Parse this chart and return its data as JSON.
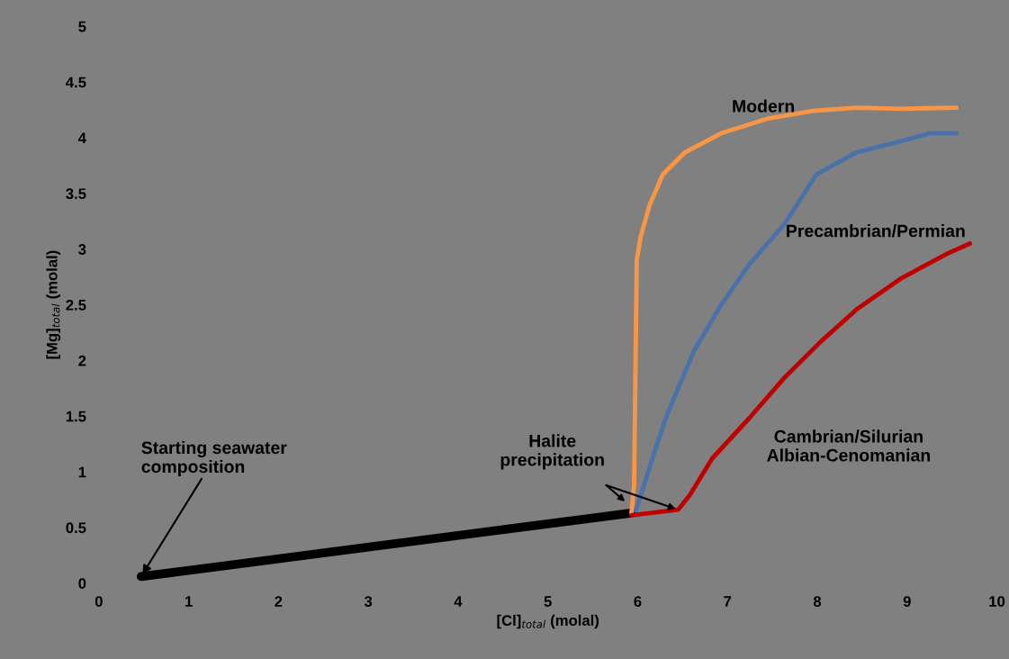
{
  "chart_data": {
    "type": "line",
    "xlabel": "[Cl]$_{total}$ (molal)",
    "ylabel": "[Mg]$_{total}$ (molal)",
    "xlim": [
      0,
      10
    ],
    "xticks": [
      0,
      1,
      2,
      3,
      4,
      5,
      6,
      7,
      8,
      9,
      10
    ],
    "ylim": [
      0,
      5
    ],
    "yticks": [
      0,
      0.5,
      1,
      1.5,
      2,
      2.5,
      3,
      3.5,
      4,
      4.5,
      5
    ],
    "grid": false,
    "legend": false,
    "marker": "none",
    "line_style": "solid",
    "series": [
      {
        "color": "#000000",
        "x": [
          0.47,
          5.93
        ],
        "values": [
          0.06,
          0.63
        ]
      },
      {
        "name": "Modern",
        "color": "#f79646",
        "x": [
          5.93,
          5.96,
          5.99,
          6.03,
          6.13,
          6.28,
          6.53,
          6.93,
          7.44,
          7.94,
          8.44,
          8.94,
          9.55
        ],
        "values": [
          0.63,
          0.88,
          2.9,
          3.1,
          3.39,
          3.67,
          3.87,
          4.04,
          4.17,
          4.24,
          4.27,
          4.26,
          4.27
        ]
      },
      {
        "name": "Precambrian/Permian",
        "color": "#4a72a8",
        "x": [
          5.98,
          6.18,
          6.33,
          6.63,
          6.93,
          7.24,
          7.64,
          7.99,
          8.44,
          8.94,
          9.25,
          9.55
        ],
        "values": [
          0.65,
          1.16,
          1.52,
          2.09,
          2.5,
          2.86,
          3.23,
          3.67,
          3.87,
          3.97,
          4.04,
          4.04
        ]
      },
      {
        "name": "Cambrian/Silurian\nAlbian-Cenomanian",
        "color": "#c00000",
        "x": [
          5.93,
          6.45,
          6.58,
          6.83,
          7.24,
          7.64,
          8.04,
          8.44,
          8.94,
          9.45,
          9.7
        ],
        "values": [
          0.61,
          0.66,
          0.79,
          1.12,
          1.48,
          1.85,
          2.17,
          2.46,
          2.74,
          2.96,
          3.05
        ]
      }
    ],
    "annotations": [
      {
        "text": "Starting seawater composition",
        "x": 0.47,
        "y": 0.06
      },
      {
        "text": "Halite precipitation",
        "x": 5.88,
        "y": 0.72
      }
    ]
  }
}
